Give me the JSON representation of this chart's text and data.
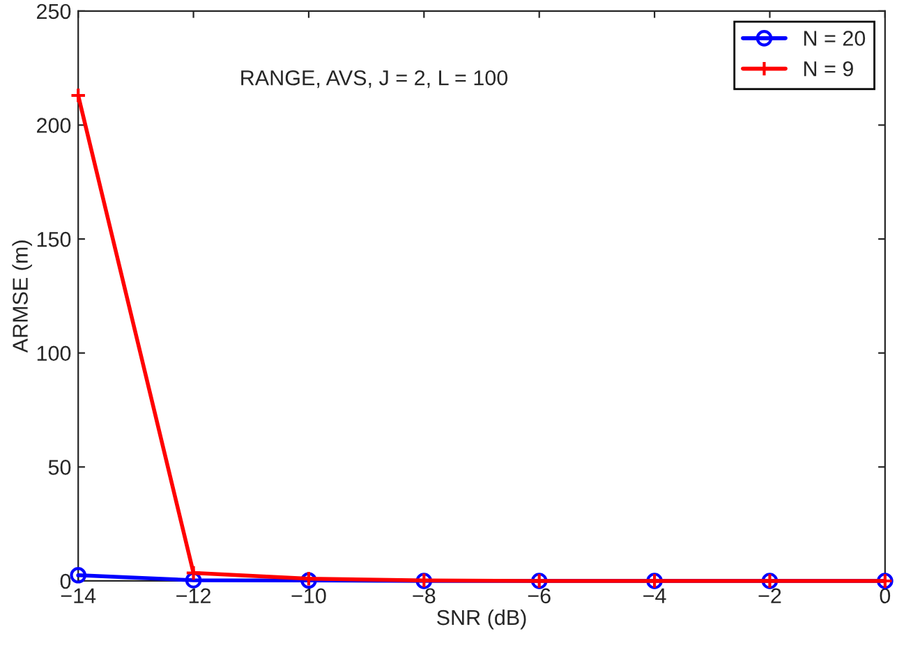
{
  "chart_data": {
    "type": "line",
    "xlabel": "SNR (dB)",
    "ylabel": "ARMSE (m)",
    "annotations": [
      "RANGE, AVS, J = 2, L = 100"
    ],
    "x": [
      -14,
      -12,
      -10,
      -8,
      -6,
      -4,
      -2,
      0
    ],
    "series": [
      {
        "name": "N = 20",
        "color": "#0000ff",
        "marker": "circle",
        "values": [
          2.5,
          0.3,
          0.2,
          0,
          0,
          0,
          0,
          0
        ]
      },
      {
        "name": "N = 9",
        "color": "#ff0000",
        "marker": "cross",
        "values": [
          213,
          3.5,
          1,
          0.2,
          0,
          0,
          0,
          0
        ]
      }
    ],
    "xlim": [
      -14,
      0
    ],
    "xticks": [
      {
        "value": -14,
        "label": "−14"
      },
      {
        "value": -12,
        "label": "−12"
      },
      {
        "value": -10,
        "label": "−10"
      },
      {
        "value": -8,
        "label": "−8"
      },
      {
        "value": -6,
        "label": "−6"
      },
      {
        "value": -4,
        "label": "−4"
      },
      {
        "value": -2,
        "label": "−2"
      },
      0
    ],
    "ylim": [
      0,
      250
    ],
    "yticks": [
      0,
      50,
      100,
      150,
      200,
      250
    ],
    "grid": false,
    "legend": "top right",
    "line_style": "solid"
  }
}
